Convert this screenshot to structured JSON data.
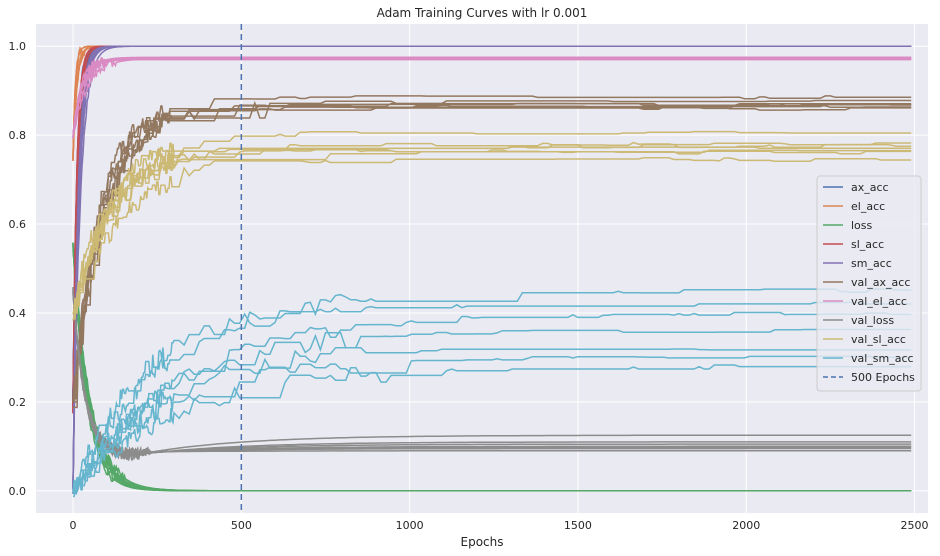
{
  "chart_data": {
    "type": "line",
    "title": "Adam Training Curves with lr 0.001",
    "xlabel": "Epochs",
    "ylabel": "",
    "xlim": [
      -110,
      2540
    ],
    "ylim": [
      -0.05,
      1.05
    ],
    "xticks": [
      0,
      500,
      1000,
      1500,
      2000,
      2500
    ],
    "xtick_labels": [
      "0",
      "500",
      "1000",
      "1500",
      "2000",
      "2500"
    ],
    "yticks": [
      0.0,
      0.2,
      0.4,
      0.6,
      0.8,
      1.0
    ],
    "ytick_labels": [
      "0.0",
      "0.2",
      "0.4",
      "0.6",
      "0.8",
      "1.0"
    ],
    "grid": true,
    "background": "#eaeaf2",
    "legend_position": "center-right",
    "vline": {
      "x": 500,
      "label": "500 Epochs",
      "color": "#4c72b0",
      "style": "dashed"
    },
    "runs_per_metric": 7,
    "series": [
      {
        "name": "ax_acc",
        "color": "#4c72b0",
        "start": 0.2,
        "final": [
          1.0,
          1.0,
          1.0,
          1.0,
          1.0,
          1.0,
          1.0
        ],
        "rise_epochs": 40
      },
      {
        "name": "el_acc",
        "color": "#dd8452",
        "start": 0.75,
        "final": [
          1.0,
          1.0,
          1.0,
          1.0,
          1.0,
          1.0,
          1.0
        ],
        "rise_epochs": 30
      },
      {
        "name": "loss",
        "color": "#55a868",
        "start": 0.55,
        "final": [
          0.0,
          0.0,
          0.0,
          0.0,
          0.0,
          0.0,
          0.0
        ],
        "rise_epochs": 120
      },
      {
        "name": "sl_acc",
        "color": "#c44e52",
        "start": 0.18,
        "final": [
          1.0,
          1.0,
          1.0,
          1.0,
          1.0,
          1.0,
          1.0
        ],
        "rise_epochs": 40
      },
      {
        "name": "sm_acc",
        "color": "#8172b3",
        "start": 0.0,
        "final": [
          1.0,
          1.0,
          1.0,
          1.0,
          1.0,
          1.0,
          1.0
        ],
        "rise_epochs": 50
      },
      {
        "name": "val_ax_acc",
        "color": "#937860",
        "start": 0.2,
        "final": [
          0.885,
          0.875,
          0.87,
          0.868,
          0.865,
          0.862,
          0.86
        ],
        "rise_epochs": 250
      },
      {
        "name": "val_el_acc",
        "color": "#da8bc3",
        "start": 0.8,
        "final": [
          0.975,
          0.973,
          0.972,
          0.971,
          0.97,
          0.972,
          0.974
        ],
        "rise_epochs": 100
      },
      {
        "name": "val_loss",
        "color": "#8c8c8c",
        "start": 0.45,
        "final": [
          0.125,
          0.11,
          0.105,
          0.1,
          0.098,
          0.095,
          0.09
        ],
        "rise_epochs": 200
      },
      {
        "name": "val_sl_acc",
        "color": "#ccb974",
        "start": 0.4,
        "final": [
          0.805,
          0.78,
          0.775,
          0.77,
          0.765,
          0.76,
          0.745
        ],
        "rise_epochs": 350
      },
      {
        "name": "val_sm_acc",
        "color": "#64b5cd",
        "start": 0.0,
        "final": [
          0.45,
          0.42,
          0.4,
          0.36,
          0.32,
          0.3,
          0.28
        ],
        "rise_epochs": 800
      }
    ]
  }
}
